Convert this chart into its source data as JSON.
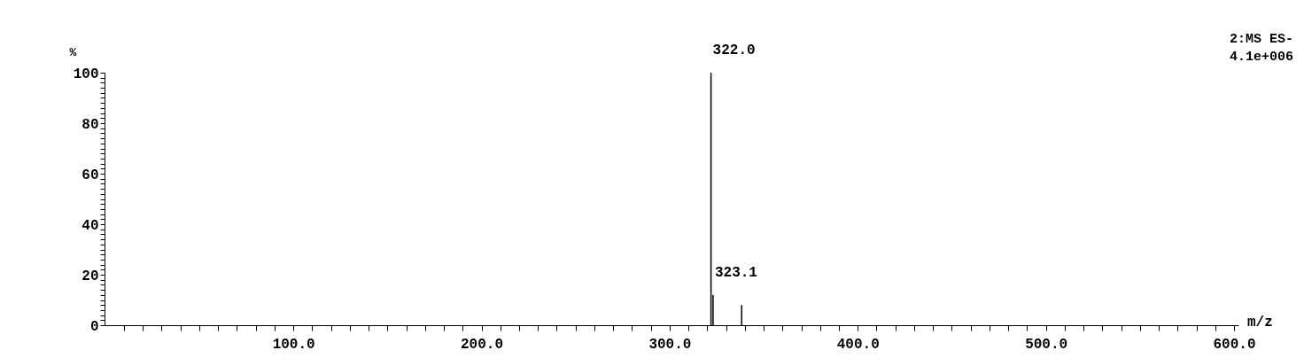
{
  "chart_data": {
    "type": "bar",
    "xlabel": "m/z",
    "ylabel": "%",
    "x": [
      322.0,
      323.1,
      338.3
    ],
    "values": [
      100,
      12,
      8
    ],
    "color": "#000000",
    "xlim": [
      2,
      600
    ],
    "xticks": [
      {
        "value": 10,
        "label": null
      },
      {
        "value": 20,
        "label": null
      },
      {
        "value": 30,
        "label": null
      },
      {
        "value": 40,
        "label": null
      },
      {
        "value": 50,
        "label": null
      },
      {
        "value": 60,
        "label": null
      },
      {
        "value": 70,
        "label": null
      },
      {
        "value": 80,
        "label": null
      },
      {
        "value": 90,
        "label": null
      },
      {
        "value": 100,
        "label": "100.0"
      },
      {
        "value": 110,
        "label": null
      },
      {
        "value": 120,
        "label": null
      },
      {
        "value": 130,
        "label": null
      },
      {
        "value": 140,
        "label": null
      },
      {
        "value": 150,
        "label": null
      },
      {
        "value": 160,
        "label": null
      },
      {
        "value": 170,
        "label": null
      },
      {
        "value": 180,
        "label": null
      },
      {
        "value": 190,
        "label": null
      },
      {
        "value": 200,
        "label": "200.0"
      },
      {
        "value": 210,
        "label": null
      },
      {
        "value": 220,
        "label": null
      },
      {
        "value": 230,
        "label": null
      },
      {
        "value": 240,
        "label": null
      },
      {
        "value": 250,
        "label": null
      },
      {
        "value": 260,
        "label": null
      },
      {
        "value": 270,
        "label": null
      },
      {
        "value": 280,
        "label": null
      },
      {
        "value": 290,
        "label": null
      },
      {
        "value": 300,
        "label": "300.0"
      },
      {
        "value": 310,
        "label": null
      },
      {
        "value": 320,
        "label": null
      },
      {
        "value": 330,
        "label": null
      },
      {
        "value": 340,
        "label": null
      },
      {
        "value": 350,
        "label": null
      },
      {
        "value": 360,
        "label": null
      },
      {
        "value": 370,
        "label": null
      },
      {
        "value": 380,
        "label": null
      },
      {
        "value": 390,
        "label": null
      },
      {
        "value": 400,
        "label": "400.0"
      },
      {
        "value": 410,
        "label": null
      },
      {
        "value": 420,
        "label": null
      },
      {
        "value": 430,
        "label": null
      },
      {
        "value": 440,
        "label": null
      },
      {
        "value": 450,
        "label": null
      },
      {
        "value": 460,
        "label": null
      },
      {
        "value": 470,
        "label": null
      },
      {
        "value": 480,
        "label": null
      },
      {
        "value": 490,
        "label": null
      },
      {
        "value": 500,
        "label": "500.0"
      },
      {
        "value": 510,
        "label": null
      },
      {
        "value": 520,
        "label": null
      },
      {
        "value": 530,
        "label": null
      },
      {
        "value": 540,
        "label": null
      },
      {
        "value": 550,
        "label": null
      },
      {
        "value": 560,
        "label": null
      },
      {
        "value": 570,
        "label": null
      },
      {
        "value": 580,
        "label": null
      },
      {
        "value": 590,
        "label": null
      },
      {
        "value": 600,
        "label": "600.0"
      }
    ],
    "ylim": [
      0,
      100
    ],
    "yticks": [
      0,
      {
        "value": 2,
        "label": null
      },
      {
        "value": 4,
        "label": null
      },
      {
        "value": 6,
        "label": null
      },
      {
        "value": 8,
        "label": null
      },
      {
        "value": 10,
        "label": null
      },
      {
        "value": 12,
        "label": null
      },
      {
        "value": 14,
        "label": null
      },
      {
        "value": 16,
        "label": null
      },
      {
        "value": 18,
        "label": null
      },
      20,
      {
        "value": 22,
        "label": null
      },
      {
        "value": 24,
        "label": null
      },
      {
        "value": 26,
        "label": null
      },
      {
        "value": 28,
        "label": null
      },
      {
        "value": 30,
        "label": null
      },
      {
        "value": 32,
        "label": null
      },
      {
        "value": 34,
        "label": null
      },
      {
        "value": 36,
        "label": null
      },
      {
        "value": 38,
        "label": null
      },
      40,
      {
        "value": 42,
        "label": null
      },
      {
        "value": 44,
        "label": null
      },
      {
        "value": 46,
        "label": null
      },
      {
        "value": 48,
        "label": null
      },
      {
        "value": 50,
        "label": null
      },
      {
        "value": 52,
        "label": null
      },
      {
        "value": 54,
        "label": null
      },
      {
        "value": 56,
        "label": null
      },
      {
        "value": 58,
        "label": null
      },
      60,
      {
        "value": 62,
        "label": null
      },
      {
        "value": 64,
        "label": null
      },
      {
        "value": 66,
        "label": null
      },
      {
        "value": 68,
        "label": null
      },
      {
        "value": 70,
        "label": null
      },
      {
        "value": 72,
        "label": null
      },
      {
        "value": 74,
        "label": null
      },
      {
        "value": 76,
        "label": null
      },
      {
        "value": 78,
        "label": null
      },
      80,
      {
        "value": 82,
        "label": null
      },
      {
        "value": 84,
        "label": null
      },
      {
        "value": 86,
        "label": null
      },
      {
        "value": 88,
        "label": null
      },
      {
        "value": 90,
        "label": null
      },
      {
        "value": 92,
        "label": null
      },
      {
        "value": 94,
        "label": null
      },
      {
        "value": 96,
        "label": null
      },
      {
        "value": 98,
        "label": null
      },
      100
    ],
    "grid": false,
    "annotations": [
      {
        "text": "322.0",
        "x": 322.0,
        "y": 100
      },
      {
        "text": "323.1",
        "x": 323.1,
        "y": 12
      },
      "2:MS ES-",
      "4.1e+006"
    ]
  }
}
